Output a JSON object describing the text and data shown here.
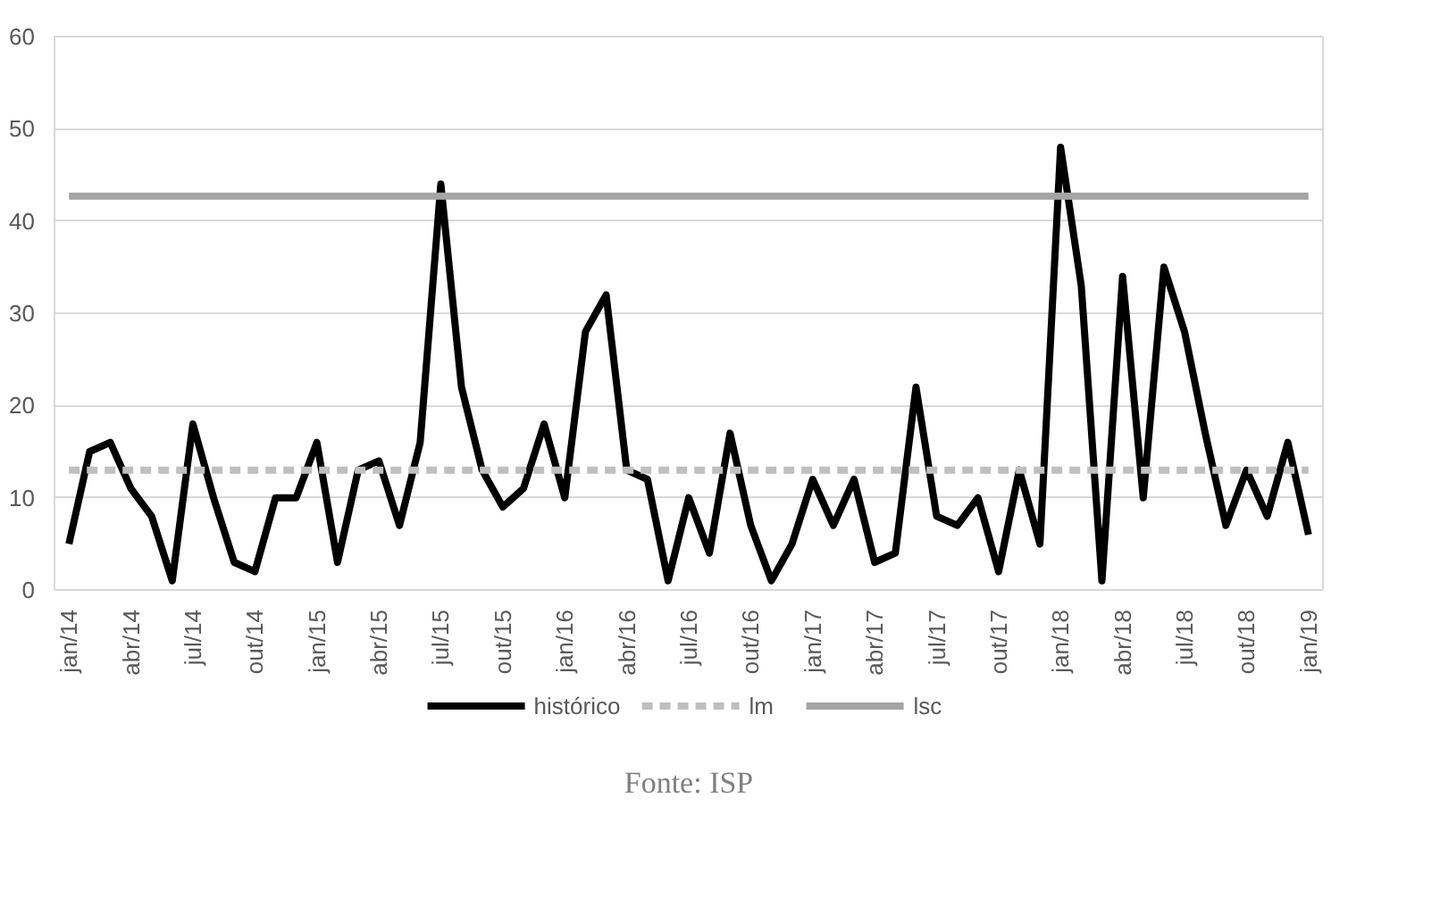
{
  "chart_data": {
    "type": "line",
    "categories": [
      "jan/14",
      null,
      null,
      "abr/14",
      null,
      null,
      "jul/14",
      null,
      null,
      "out/14",
      null,
      null,
      "jan/15",
      null,
      null,
      "abr/15",
      null,
      null,
      "jul/15",
      null,
      null,
      "out/15",
      null,
      null,
      "jan/16",
      null,
      null,
      "abr/16",
      null,
      null,
      "jul/16",
      null,
      null,
      "out/16",
      null,
      null,
      "jan/17",
      null,
      null,
      "abr/17",
      null,
      null,
      "jul/17",
      null,
      null,
      "out/17",
      null,
      null,
      "jan/18",
      null,
      null,
      "abr/18",
      null,
      null,
      "jul/18",
      null,
      null,
      "out/18",
      null,
      null,
      "jan/19"
    ],
    "series": [
      {
        "name": "histórico",
        "color": "#000000",
        "line_style": "solid",
        "values": [
          5,
          15,
          16,
          11,
          8,
          1,
          18,
          10,
          3,
          2,
          10,
          10,
          16,
          3,
          13,
          14,
          7,
          16,
          44,
          22,
          13,
          9,
          11,
          18,
          10,
          28,
          32,
          13,
          12,
          1,
          10,
          4,
          17,
          7,
          1,
          5,
          12,
          7,
          12,
          3,
          4,
          22,
          8,
          7,
          10,
          2,
          13,
          5,
          48,
          33,
          1,
          34,
          10,
          35,
          28,
          17,
          7,
          13,
          8,
          16,
          6
        ]
      },
      {
        "name": "lm",
        "color": "#bfbfbf",
        "line_style": "dashed",
        "values": [
          13,
          13,
          13,
          13,
          13,
          13,
          13,
          13,
          13,
          13,
          13,
          13,
          13,
          13,
          13,
          13,
          13,
          13,
          13,
          13,
          13,
          13,
          13,
          13,
          13,
          13,
          13,
          13,
          13,
          13,
          13,
          13,
          13,
          13,
          13,
          13,
          13,
          13,
          13,
          13,
          13,
          13,
          13,
          13,
          13,
          13,
          13,
          13,
          13,
          13,
          13,
          13,
          13,
          13,
          13,
          13,
          13,
          13,
          13,
          13,
          13
        ]
      },
      {
        "name": "lsc",
        "color": "#a5a5a5",
        "line_style": "solid",
        "values": [
          42.7,
          42.7,
          42.7,
          42.7,
          42.7,
          42.7,
          42.7,
          42.7,
          42.7,
          42.7,
          42.7,
          42.7,
          42.7,
          42.7,
          42.7,
          42.7,
          42.7,
          42.7,
          42.7,
          42.7,
          42.7,
          42.7,
          42.7,
          42.7,
          42.7,
          42.7,
          42.7,
          42.7,
          42.7,
          42.7,
          42.7,
          42.7,
          42.7,
          42.7,
          42.7,
          42.7,
          42.7,
          42.7,
          42.7,
          42.7,
          42.7,
          42.7,
          42.7,
          42.7,
          42.7,
          42.7,
          42.7,
          42.7,
          42.7,
          42.7,
          42.7,
          42.7,
          42.7,
          42.7,
          42.7,
          42.7,
          42.7,
          42.7,
          42.7,
          42.7,
          42.7
        ]
      }
    ],
    "ylim": [
      0,
      60
    ],
    "yticks": [
      0,
      10,
      20,
      30,
      40,
      50,
      60
    ],
    "grid": "y",
    "legend": "bottom",
    "annotations": [
      "Fonte: ISP"
    ]
  }
}
